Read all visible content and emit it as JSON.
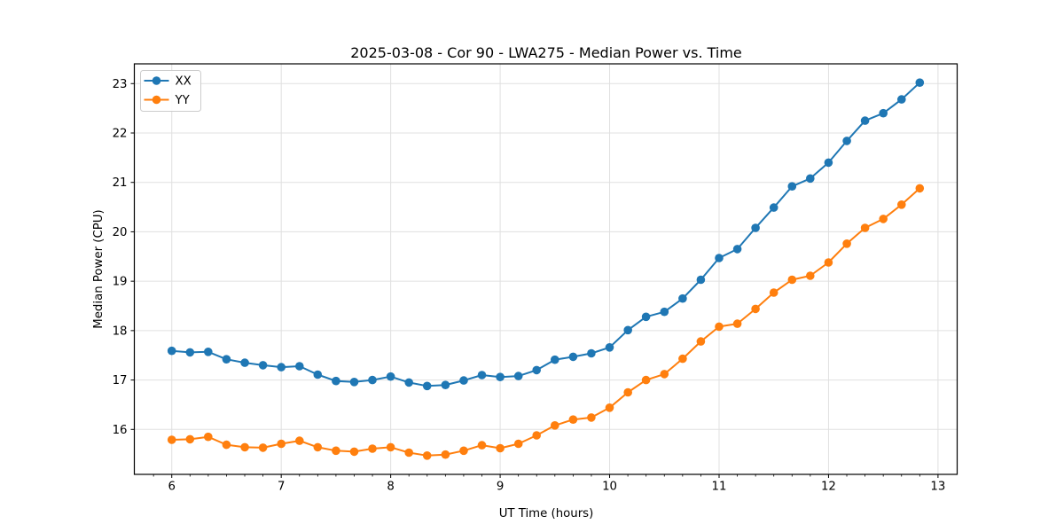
{
  "chart_data": {
    "type": "line",
    "title": "2025-03-08 - Cor 90 - LWA275 - Median Power vs. Time",
    "xlabel": "UT Time (hours)",
    "ylabel": "Median Power (CPU)",
    "xlim": [
      5.658,
      13.175
    ],
    "ylim": [
      15.09,
      23.4
    ],
    "xticks": [
      6,
      7,
      8,
      9,
      10,
      11,
      12,
      13
    ],
    "yticks": [
      16,
      17,
      18,
      19,
      20,
      21,
      22,
      23
    ],
    "x_minor_step_hours": 0.1667,
    "grid": true,
    "legend_position": "upper-left",
    "grid_color": "#e0e0e0",
    "x": [
      6.0,
      6.167,
      6.333,
      6.5,
      6.667,
      6.833,
      7.0,
      7.167,
      7.333,
      7.5,
      7.667,
      7.833,
      8.0,
      8.167,
      8.333,
      8.5,
      8.667,
      8.833,
      9.0,
      9.167,
      9.333,
      9.5,
      9.667,
      9.833,
      10.0,
      10.167,
      10.333,
      10.5,
      10.667,
      10.833,
      11.0,
      11.167,
      11.333,
      11.5,
      11.667,
      11.833,
      12.0,
      12.167,
      12.333,
      12.5,
      12.667,
      12.833
    ],
    "series": [
      {
        "name": "XX",
        "color": "#1f77b4",
        "values": [
          17.59,
          17.56,
          17.57,
          17.42,
          17.35,
          17.3,
          17.26,
          17.28,
          17.11,
          16.98,
          16.96,
          17.0,
          17.07,
          16.95,
          16.88,
          16.9,
          16.99,
          17.1,
          17.06,
          17.08,
          17.2,
          17.41,
          17.47,
          17.54,
          17.66,
          18.01,
          18.28,
          18.38,
          18.65,
          19.03,
          19.47,
          19.65,
          20.08,
          20.49,
          20.92,
          21.08,
          21.4,
          21.84,
          22.25,
          22.4,
          22.68,
          23.02
        ]
      },
      {
        "name": "YY",
        "color": "#ff7f0e",
        "values": [
          15.79,
          15.8,
          15.85,
          15.69,
          15.64,
          15.63,
          15.71,
          15.77,
          15.64,
          15.57,
          15.55,
          15.61,
          15.64,
          15.53,
          15.47,
          15.49,
          15.57,
          15.68,
          15.62,
          15.71,
          15.88,
          16.08,
          16.2,
          16.24,
          16.44,
          16.75,
          17.0,
          17.12,
          17.43,
          17.78,
          18.08,
          18.14,
          18.44,
          18.77,
          19.03,
          19.11,
          19.38,
          19.76,
          20.08,
          20.26,
          20.55,
          20.88
        ]
      }
    ]
  }
}
